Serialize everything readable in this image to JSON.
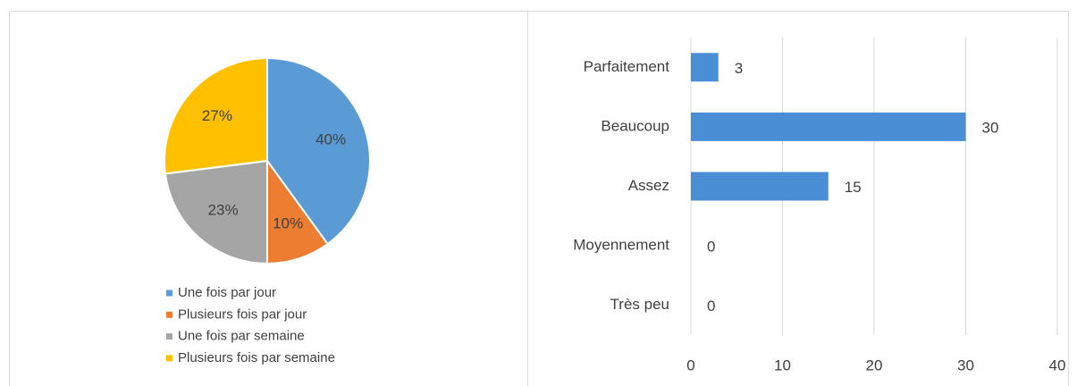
{
  "chart_data": [
    {
      "type": "pie",
      "categories": [
        "Une fois par jour",
        "Plusieurs fois par jour",
        "Une fois par semaine",
        "Plusieurs fois par semaine"
      ],
      "values": [
        40,
        10,
        23,
        27
      ],
      "value_labels": [
        "40%",
        "10%",
        "23%",
        "27%"
      ],
      "colors": [
        "#5b9bd5",
        "#ed7d31",
        "#a5a5a5",
        "#ffc000"
      ],
      "legend": "bottom"
    },
    {
      "type": "bar",
      "orientation": "horizontal",
      "categories": [
        "Parfaitement",
        "Beaucoup",
        "Assez",
        "Moyennement",
        "Très peu"
      ],
      "values": [
        3,
        30,
        15,
        0,
        0
      ],
      "color": "#4a8fd6",
      "xlim": [
        0,
        40
      ],
      "xticks": [
        0,
        10,
        20,
        30,
        40
      ],
      "grid": true
    }
  ]
}
